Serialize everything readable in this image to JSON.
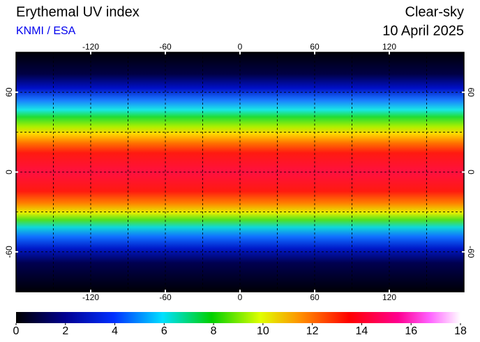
{
  "title": "Erythemal UV index",
  "source": "KNMI / ESA",
  "condition": "Clear-sky",
  "date": "10 April 2025",
  "map": {
    "xlim": [
      -180,
      180
    ],
    "ylim": [
      -90,
      90
    ],
    "xticks": [
      -120,
      -60,
      0,
      60,
      120
    ],
    "yticks": [
      -60,
      0,
      60
    ]
  },
  "colorbar": {
    "lim": [
      0,
      18
    ],
    "ticks": [
      0,
      2,
      4,
      6,
      8,
      10,
      12,
      14,
      16,
      18
    ]
  }
}
